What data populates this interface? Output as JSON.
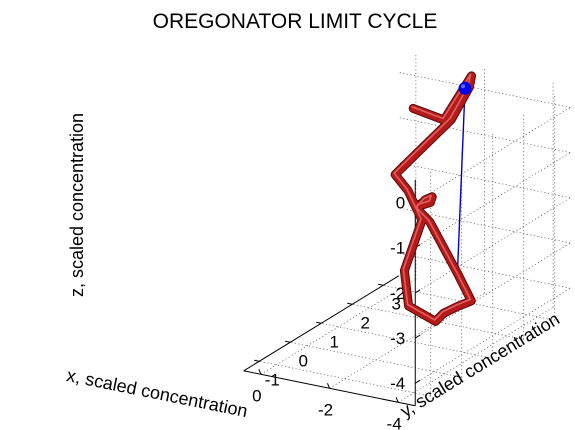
{
  "chart_data": {
    "type": "line",
    "title": "OREGONATOR LIMIT CYCLE",
    "xlabel": "x, scaled concentration",
    "ylabel": "y, scaled concentration",
    "zlabel": "z, scaled concentration",
    "xlim": [
      -4.5,
      0.5
    ],
    "ylim": [
      -1.5,
      3.5
    ],
    "zlim": [
      -4.5,
      0.5
    ],
    "xticks": [
      "-4",
      "-2",
      "0"
    ],
    "yticks": [
      "-1",
      "0",
      "1",
      "2",
      "3"
    ],
    "zticks": [
      "0",
      "-1",
      "-2",
      "-3",
      "-4"
    ],
    "grid": true,
    "series": [
      {
        "color": "#b51a1a",
        "points_xyz": [
          [
            -1.73,
            1.5,
            0.39
          ],
          [
            -2.14,
            2.04,
            -0.03
          ],
          [
            -1.91,
            3.18,
            0.43
          ],
          [
            -1.76,
            3.28,
            0.12
          ],
          [
            -1.48,
            3.0,
            -0.53
          ],
          [
            -0.92,
            2.48,
            -1.16
          ],
          [
            -0.47,
            2.31,
            -1.61
          ],
          [
            -0.69,
            2.48,
            -2.0
          ],
          [
            -1.09,
            2.49,
            -2.6
          ],
          [
            -1.49,
            1.48,
            -3.23
          ],
          [
            -2.0,
            1.05,
            -3.75
          ],
          [
            -2.56,
            1.3,
            -4.11
          ],
          [
            -3.01,
            1.06,
            -3.76
          ],
          [
            -3.38,
            1.1,
            -3.57
          ],
          [
            -3.82,
            1.06,
            -3.36
          ],
          [
            -3.66,
            0.79,
            -2.66
          ],
          [
            -2.98,
            0.65,
            -1.57
          ],
          [
            -2.87,
            0.39,
            -1.21
          ],
          [
            -3.03,
            0.23,
            -1.04
          ],
          [
            -3.17,
            0.46,
            -1.03
          ],
          [
            -2.88,
            0.84,
            -1.11
          ],
          [
            -2.61,
            0.91,
            -1.25
          ],
          [
            -2.48,
            0.79,
            -1.42
          ]
        ]
      }
    ],
    "marker": {
      "xyz": [
        -1.92,
        2.96,
        0.25
      ],
      "color": "#0000e6"
    },
    "stem": {
      "from_xyz": [
        -3.66,
        0.79,
        -2.66
      ],
      "to_xyz": [
        -1.92,
        2.96,
        0.25
      ],
      "color": "#0000cc"
    }
  }
}
